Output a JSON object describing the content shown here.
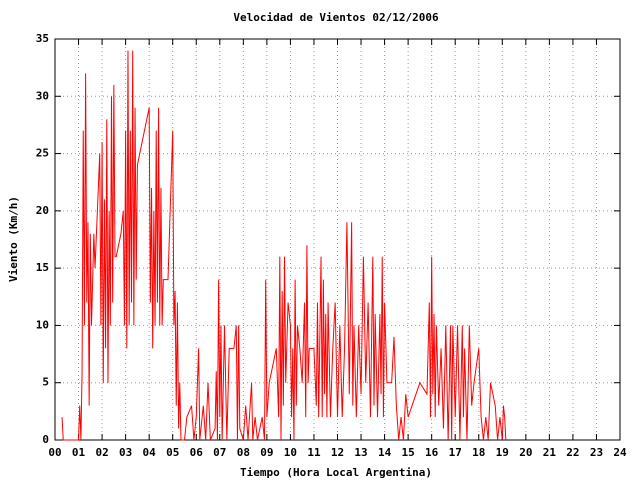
{
  "chart_data": {
    "type": "line",
    "title": "Velocidad de Vientos 02/12/2006",
    "x_label": "Tiempo (Hora Local Argentina)",
    "y_label": "Viento (Km/h)",
    "xlim": [
      0,
      24
    ],
    "xticks": [
      {
        "value": 0,
        "label": "00"
      },
      {
        "value": 1,
        "label": "01"
      },
      {
        "value": 2,
        "label": "02"
      },
      {
        "value": 3,
        "label": "03"
      },
      {
        "value": 4,
        "label": "04"
      },
      {
        "value": 5,
        "label": "05"
      },
      {
        "value": 6,
        "label": "06"
      },
      {
        "value": 7,
        "label": "07"
      },
      {
        "value": 8,
        "label": "08"
      },
      {
        "value": 9,
        "label": "09"
      },
      10,
      11,
      12,
      13,
      14,
      15,
      16,
      17,
      18,
      19,
      20,
      21,
      22,
      23,
      24
    ],
    "ylim": [
      0,
      35
    ],
    "yticks": [
      0,
      5,
      10,
      15,
      20,
      25,
      30,
      35
    ],
    "grid": true,
    "color": "#ff0000",
    "x": [
      0.3,
      0.35,
      1.0,
      1.05,
      1.1,
      1.15,
      1.2,
      1.25,
      1.3,
      1.35,
      1.4,
      1.45,
      1.5,
      1.55,
      1.6,
      1.65,
      1.7,
      1.8,
      1.9,
      1.95,
      2.0,
      2.05,
      2.1,
      2.15,
      2.2,
      2.25,
      2.3,
      2.35,
      2.4,
      2.45,
      2.5,
      2.55,
      2.6,
      2.8,
      2.9,
      2.95,
      3.0,
      3.05,
      3.1,
      3.15,
      3.2,
      3.25,
      3.3,
      3.35,
      3.4,
      3.45,
      3.5,
      3.6,
      3.8,
      4.0,
      4.05,
      4.1,
      4.15,
      4.2,
      4.25,
      4.3,
      4.35,
      4.4,
      4.45,
      4.5,
      4.55,
      4.6,
      4.8,
      5.0,
      5.05,
      5.1,
      5.15,
      5.2,
      5.25,
      5.3,
      5.35,
      5.5,
      5.6,
      5.8,
      5.9,
      6.0,
      6.1,
      6.15,
      6.3,
      6.4,
      6.5,
      6.6,
      6.8,
      6.85,
      6.9,
      6.95,
      7.0,
      7.05,
      7.1,
      7.15,
      7.2,
      7.3,
      7.4,
      7.6,
      7.7,
      7.75,
      7.8,
      7.85,
      8.0,
      8.1,
      8.2,
      8.35,
      8.4,
      8.5,
      8.6,
      8.8,
      8.9,
      8.95,
      9.0,
      9.1,
      9.4,
      9.5,
      9.55,
      9.6,
      9.65,
      9.7,
      9.75,
      9.8,
      9.9,
      10.0,
      10.05,
      10.1,
      10.15,
      10.2,
      10.25,
      10.3,
      10.4,
      10.5,
      10.6,
      10.65,
      10.7,
      10.75,
      10.8,
      11.0,
      11.1,
      11.15,
      11.2,
      11.3,
      11.35,
      11.4,
      11.45,
      11.5,
      11.55,
      11.6,
      11.7,
      11.8,
      11.9,
      12.0,
      12.1,
      12.2,
      12.3,
      12.4,
      12.5,
      12.6,
      12.65,
      12.7,
      12.8,
      12.9,
      13.0,
      13.1,
      13.2,
      13.3,
      13.4,
      13.5,
      13.55,
      13.6,
      13.7,
      13.8,
      13.85,
      13.9,
      13.95,
      14.0,
      14.1,
      14.3,
      14.4,
      14.5,
      14.6,
      14.7,
      14.8,
      14.9,
      15.0,
      15.5,
      15.8,
      15.9,
      15.95,
      16.0,
      16.05,
      16.1,
      16.15,
      16.2,
      16.3,
      16.4,
      16.5,
      16.6,
      16.7,
      16.8,
      16.85,
      16.9,
      17.0,
      17.1,
      17.2,
      17.3,
      17.35,
      17.4,
      17.5,
      17.6,
      17.7,
      17.8,
      18.0,
      18.1,
      18.2,
      18.3,
      18.4,
      18.5,
      18.7,
      18.8,
      18.9,
      19.0,
      19.05,
      19.1,
      19.15
    ],
    "values": [
      2,
      0,
      0,
      3,
      0,
      6,
      27,
      10,
      32,
      12,
      19,
      3,
      18,
      10,
      14,
      18,
      15,
      20,
      25,
      10,
      26,
      5,
      21,
      8,
      28,
      5,
      20,
      10,
      30,
      12,
      31,
      16,
      16,
      18,
      20,
      10,
      27,
      8,
      34,
      10,
      27,
      12,
      34,
      10,
      29,
      14,
      24,
      25,
      27,
      29,
      12,
      22,
      8,
      20,
      10,
      27,
      12,
      29,
      10,
      22,
      10,
      14,
      14,
      27,
      10,
      13,
      3,
      12,
      1,
      5,
      0,
      0,
      2,
      3,
      0,
      2,
      8,
      0,
      3,
      0,
      5,
      0,
      1,
      6,
      0,
      14,
      2,
      10,
      0,
      5,
      10,
      0,
      8,
      8,
      10,
      0,
      10,
      1,
      0,
      3,
      0,
      5,
      0,
      2,
      0,
      2,
      0,
      14,
      2,
      5,
      8,
      2,
      16,
      0,
      13,
      3,
      16,
      5,
      12,
      10,
      2,
      8,
      0,
      14,
      3,
      10,
      8,
      5,
      12,
      2,
      17,
      5,
      8,
      8,
      3,
      12,
      2,
      16,
      2,
      14,
      4,
      11,
      2,
      12,
      2,
      8,
      12,
      2,
      10,
      2,
      8,
      19,
      4,
      19,
      3,
      10,
      2,
      10,
      4,
      16,
      5,
      12,
      2,
      16,
      3,
      11,
      2,
      11,
      4,
      16,
      2,
      12,
      5,
      5,
      9,
      3,
      0,
      2,
      0,
      4,
      2,
      5,
      4,
      12,
      2,
      16,
      4,
      11,
      2,
      10,
      3,
      8,
      1,
      10,
      0,
      10,
      0,
      10,
      2,
      10,
      0,
      10,
      2,
      8,
      0,
      10,
      3,
      5,
      8,
      2,
      0,
      2,
      0,
      5,
      3,
      0,
      2,
      0,
      3,
      2,
      0
    ]
  }
}
